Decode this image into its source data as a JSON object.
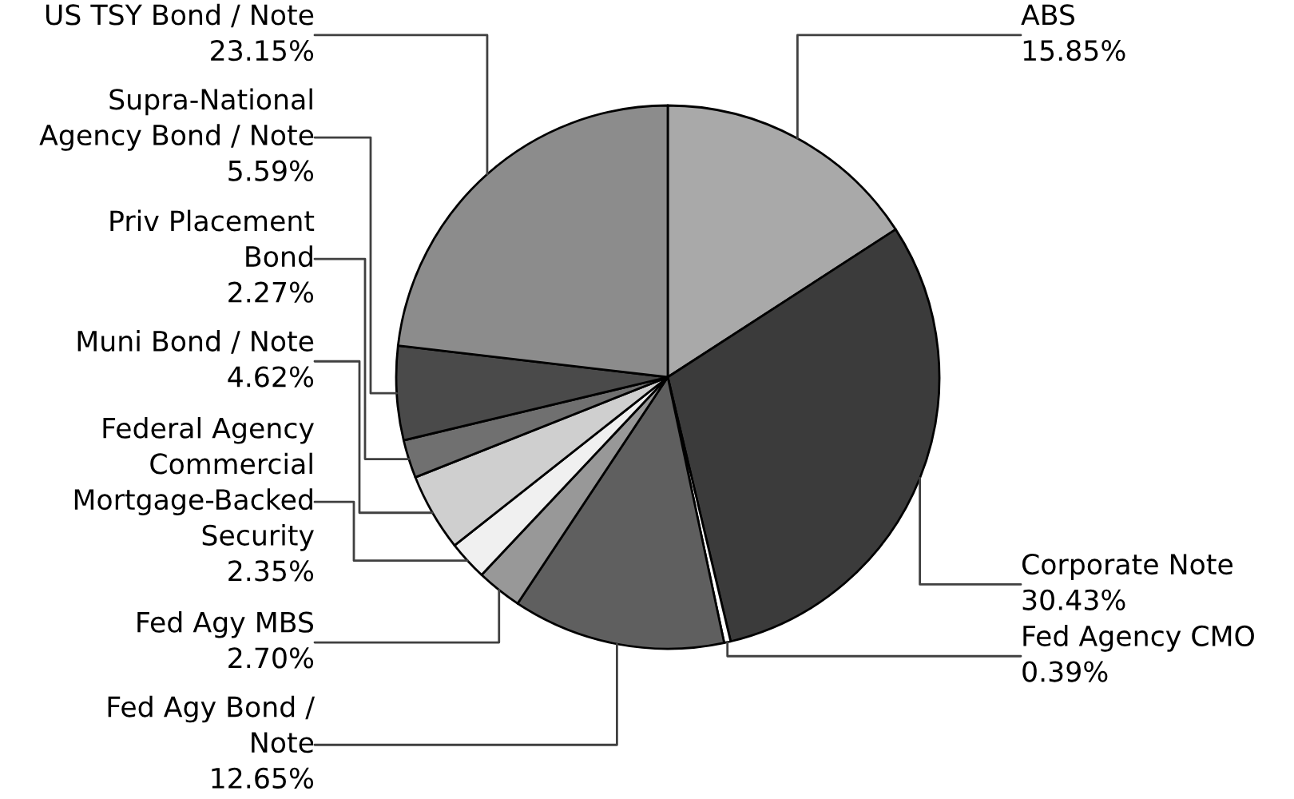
{
  "chart_data": {
    "type": "pie",
    "categories": [
      "ABS",
      "Corporate Note",
      "Fed Agency CMO",
      "Fed Agy Bond /\nNote",
      "Fed Agy MBS",
      "Federal Agency\nCommercial\nMortgage-Backed\nSecurity",
      "Muni Bond / Note",
      "Priv Placement\nBond",
      "Supra-National\nAgency Bond / Note",
      "US TSY Bond / Note"
    ],
    "values": [
      15.85,
      30.43,
      0.39,
      12.65,
      2.7,
      2.35,
      4.62,
      2.27,
      5.59,
      23.15
    ],
    "value_labels": [
      "15.85%",
      "30.43%",
      "0.39%",
      "12.65%",
      "2.70%",
      "2.35%",
      "4.62%",
      "2.27%",
      "5.59%",
      "23.15%"
    ],
    "colors": [
      "#a9a9a9",
      "#3b3b3b",
      "#ffffff",
      "#5f5f5f",
      "#989898",
      "#f0f0f0",
      "#cfcfcf",
      "#707070",
      "#4a4a4a",
      "#8c8c8c"
    ]
  }
}
